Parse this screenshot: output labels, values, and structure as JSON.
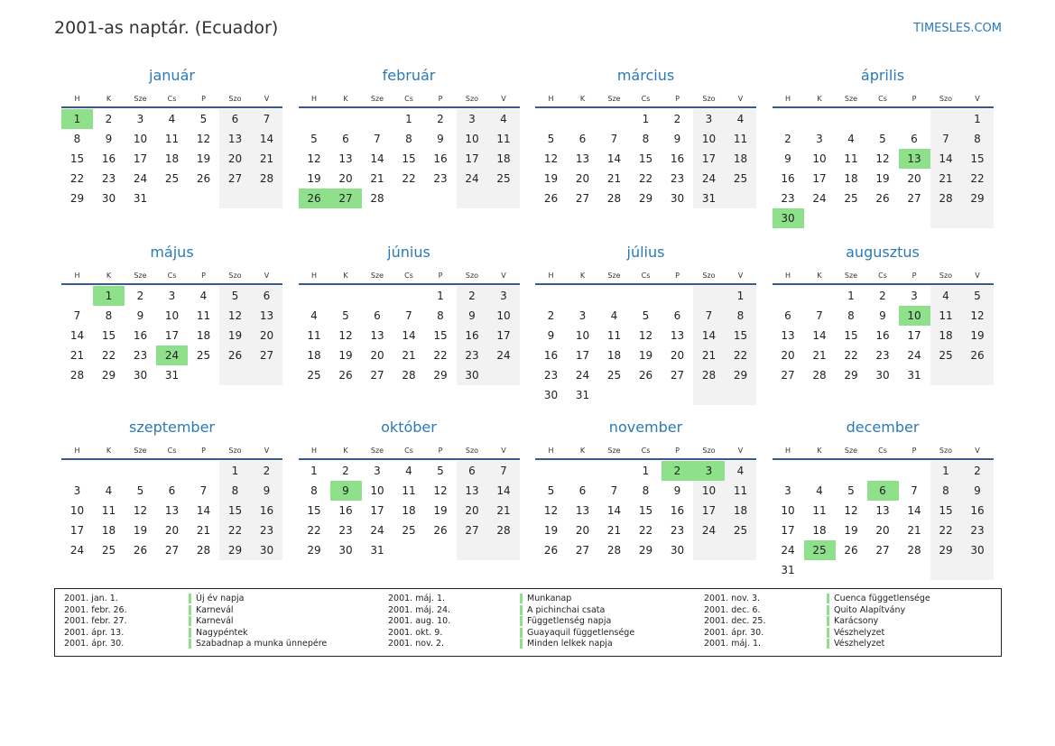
{
  "header": {
    "title": "2001-as naptár. (Ecuador)",
    "brand": "TIMESLES.COM"
  },
  "weekdays": [
    "H",
    "K",
    "Sze",
    "Cs",
    "P",
    "Szo",
    "V"
  ],
  "months": [
    {
      "name": "január",
      "holidays": [
        1
      ],
      "weeks": [
        [
          1,
          2,
          3,
          4,
          5,
          6,
          7
        ],
        [
          8,
          9,
          10,
          11,
          12,
          13,
          14
        ],
        [
          15,
          16,
          17,
          18,
          19,
          20,
          21
        ],
        [
          22,
          23,
          24,
          25,
          26,
          27,
          28
        ],
        [
          29,
          30,
          31,
          null,
          null,
          null,
          null
        ]
      ]
    },
    {
      "name": "február",
      "holidays": [
        26,
        27
      ],
      "weeks": [
        [
          null,
          null,
          null,
          1,
          2,
          3,
          4
        ],
        [
          5,
          6,
          7,
          8,
          9,
          10,
          11
        ],
        [
          12,
          13,
          14,
          15,
          16,
          17,
          18
        ],
        [
          19,
          20,
          21,
          22,
          23,
          24,
          25
        ],
        [
          26,
          27,
          28,
          null,
          null,
          null,
          null
        ]
      ]
    },
    {
      "name": "március",
      "holidays": [],
      "weeks": [
        [
          null,
          null,
          null,
          1,
          2,
          3,
          4
        ],
        [
          5,
          6,
          7,
          8,
          9,
          10,
          11
        ],
        [
          12,
          13,
          14,
          15,
          16,
          17,
          18
        ],
        [
          19,
          20,
          21,
          22,
          23,
          24,
          25
        ],
        [
          26,
          27,
          28,
          29,
          30,
          31,
          null
        ]
      ]
    },
    {
      "name": "április",
      "holidays": [
        13,
        30
      ],
      "weeks": [
        [
          null,
          null,
          null,
          null,
          null,
          null,
          1
        ],
        [
          2,
          3,
          4,
          5,
          6,
          7,
          8
        ],
        [
          9,
          10,
          11,
          12,
          13,
          14,
          15
        ],
        [
          16,
          17,
          18,
          19,
          20,
          21,
          22
        ],
        [
          23,
          24,
          25,
          26,
          27,
          28,
          29
        ],
        [
          30,
          null,
          null,
          null,
          null,
          null,
          null
        ]
      ]
    },
    {
      "name": "május",
      "holidays": [
        1,
        24
      ],
      "weeks": [
        [
          null,
          1,
          2,
          3,
          4,
          5,
          6
        ],
        [
          7,
          8,
          9,
          10,
          11,
          12,
          13
        ],
        [
          14,
          15,
          16,
          17,
          18,
          19,
          20
        ],
        [
          21,
          22,
          23,
          24,
          25,
          26,
          27
        ],
        [
          28,
          29,
          30,
          31,
          null,
          null,
          null
        ]
      ]
    },
    {
      "name": "június",
      "holidays": [],
      "weeks": [
        [
          null,
          null,
          null,
          null,
          1,
          2,
          3
        ],
        [
          4,
          5,
          6,
          7,
          8,
          9,
          10
        ],
        [
          11,
          12,
          13,
          14,
          15,
          16,
          17
        ],
        [
          18,
          19,
          20,
          21,
          22,
          23,
          24
        ],
        [
          25,
          26,
          27,
          28,
          29,
          30,
          null
        ]
      ]
    },
    {
      "name": "július",
      "holidays": [],
      "weeks": [
        [
          null,
          null,
          null,
          null,
          null,
          null,
          1
        ],
        [
          2,
          3,
          4,
          5,
          6,
          7,
          8
        ],
        [
          9,
          10,
          11,
          12,
          13,
          14,
          15
        ],
        [
          16,
          17,
          18,
          19,
          20,
          21,
          22
        ],
        [
          23,
          24,
          25,
          26,
          27,
          28,
          29
        ],
        [
          30,
          31,
          null,
          null,
          null,
          null,
          null
        ]
      ]
    },
    {
      "name": "augusztus",
      "holidays": [
        10
      ],
      "weeks": [
        [
          null,
          null,
          1,
          2,
          3,
          4,
          5
        ],
        [
          6,
          7,
          8,
          9,
          10,
          11,
          12
        ],
        [
          13,
          14,
          15,
          16,
          17,
          18,
          19
        ],
        [
          20,
          21,
          22,
          23,
          24,
          25,
          26
        ],
        [
          27,
          28,
          29,
          30,
          31,
          null,
          null
        ]
      ]
    },
    {
      "name": "szeptember",
      "holidays": [],
      "weeks": [
        [
          null,
          null,
          null,
          null,
          null,
          1,
          2
        ],
        [
          3,
          4,
          5,
          6,
          7,
          8,
          9
        ],
        [
          10,
          11,
          12,
          13,
          14,
          15,
          16
        ],
        [
          17,
          18,
          19,
          20,
          21,
          22,
          23
        ],
        [
          24,
          25,
          26,
          27,
          28,
          29,
          30
        ]
      ]
    },
    {
      "name": "október",
      "holidays": [
        9
      ],
      "weeks": [
        [
          1,
          2,
          3,
          4,
          5,
          6,
          7
        ],
        [
          8,
          9,
          10,
          11,
          12,
          13,
          14
        ],
        [
          15,
          16,
          17,
          18,
          19,
          20,
          21
        ],
        [
          22,
          23,
          24,
          25,
          26,
          27,
          28
        ],
        [
          29,
          30,
          31,
          null,
          null,
          null,
          null
        ]
      ]
    },
    {
      "name": "november",
      "holidays": [
        2,
        3
      ],
      "weeks": [
        [
          null,
          null,
          null,
          1,
          2,
          3,
          4
        ],
        [
          5,
          6,
          7,
          8,
          9,
          10,
          11
        ],
        [
          12,
          13,
          14,
          15,
          16,
          17,
          18
        ],
        [
          19,
          20,
          21,
          22,
          23,
          24,
          25
        ],
        [
          26,
          27,
          28,
          29,
          30,
          null,
          null
        ]
      ]
    },
    {
      "name": "december",
      "holidays": [
        6,
        25
      ],
      "weeks": [
        [
          null,
          null,
          null,
          null,
          null,
          1,
          2
        ],
        [
          3,
          4,
          5,
          6,
          7,
          8,
          9
        ],
        [
          10,
          11,
          12,
          13,
          14,
          15,
          16
        ],
        [
          17,
          18,
          19,
          20,
          21,
          22,
          23
        ],
        [
          24,
          25,
          26,
          27,
          28,
          29,
          30
        ],
        [
          31,
          null,
          null,
          null,
          null,
          null,
          null
        ]
      ]
    }
  ],
  "holiday_list": [
    {
      "date": "2001. jan. 1.",
      "name": "Új év napja"
    },
    {
      "date": "2001. febr. 26.",
      "name": "Karnevál"
    },
    {
      "date": "2001. febr. 27.",
      "name": "Karnevál"
    },
    {
      "date": "2001. ápr. 13.",
      "name": "Nagypéntek"
    },
    {
      "date": "2001. ápr. 30.",
      "name": "Szabadnap a munka ünnepére"
    },
    {
      "date": "2001. máj. 1.",
      "name": "Munkanap"
    },
    {
      "date": "2001. máj. 24.",
      "name": "A pichinchai csata"
    },
    {
      "date": "2001. aug. 10.",
      "name": "Függetlenség napja"
    },
    {
      "date": "2001. okt. 9.",
      "name": "Guayaquil függetlensége"
    },
    {
      "date": "2001. nov. 2.",
      "name": "Minden lelkek napja"
    },
    {
      "date": "2001. nov. 3.",
      "name": "Cuenca függetlensége"
    },
    {
      "date": "2001. dec. 6.",
      "name": "Quito Alapítvány"
    },
    {
      "date": "2001. dec. 25.",
      "name": "Karácsony"
    },
    {
      "date": "2001. ápr. 30.",
      "name": "Vészhelyzet"
    },
    {
      "date": "2001. máj. 1.",
      "name": "Vészhelyzet"
    }
  ]
}
